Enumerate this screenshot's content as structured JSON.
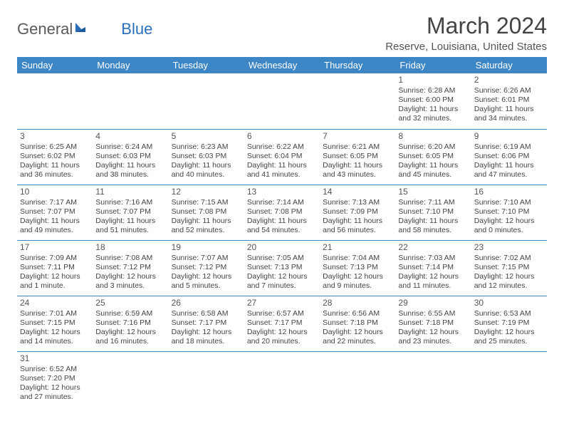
{
  "brand": {
    "part1": "General",
    "part2": "Blue"
  },
  "title": "March 2024",
  "location": "Reserve, Louisiana, United States",
  "colors": {
    "header_bg": "#3d86c6",
    "header_fg": "#ffffff",
    "border": "#3d86c6",
    "text": "#444444",
    "brand_gray": "#5a5a5a",
    "brand_blue": "#2a6db8"
  },
  "weekdays": [
    "Sunday",
    "Monday",
    "Tuesday",
    "Wednesday",
    "Thursday",
    "Friday",
    "Saturday"
  ],
  "weeks": [
    [
      null,
      null,
      null,
      null,
      null,
      {
        "n": "1",
        "sr": "6:28 AM",
        "ss": "6:00 PM",
        "dl": "11 hours and 32 minutes."
      },
      {
        "n": "2",
        "sr": "6:26 AM",
        "ss": "6:01 PM",
        "dl": "11 hours and 34 minutes."
      }
    ],
    [
      {
        "n": "3",
        "sr": "6:25 AM",
        "ss": "6:02 PM",
        "dl": "11 hours and 36 minutes."
      },
      {
        "n": "4",
        "sr": "6:24 AM",
        "ss": "6:03 PM",
        "dl": "11 hours and 38 minutes."
      },
      {
        "n": "5",
        "sr": "6:23 AM",
        "ss": "6:03 PM",
        "dl": "11 hours and 40 minutes."
      },
      {
        "n": "6",
        "sr": "6:22 AM",
        "ss": "6:04 PM",
        "dl": "11 hours and 41 minutes."
      },
      {
        "n": "7",
        "sr": "6:21 AM",
        "ss": "6:05 PM",
        "dl": "11 hours and 43 minutes."
      },
      {
        "n": "8",
        "sr": "6:20 AM",
        "ss": "6:05 PM",
        "dl": "11 hours and 45 minutes."
      },
      {
        "n": "9",
        "sr": "6:19 AM",
        "ss": "6:06 PM",
        "dl": "11 hours and 47 minutes."
      }
    ],
    [
      {
        "n": "10",
        "sr": "7:17 AM",
        "ss": "7:07 PM",
        "dl": "11 hours and 49 minutes."
      },
      {
        "n": "11",
        "sr": "7:16 AM",
        "ss": "7:07 PM",
        "dl": "11 hours and 51 minutes."
      },
      {
        "n": "12",
        "sr": "7:15 AM",
        "ss": "7:08 PM",
        "dl": "11 hours and 52 minutes."
      },
      {
        "n": "13",
        "sr": "7:14 AM",
        "ss": "7:08 PM",
        "dl": "11 hours and 54 minutes."
      },
      {
        "n": "14",
        "sr": "7:13 AM",
        "ss": "7:09 PM",
        "dl": "11 hours and 56 minutes."
      },
      {
        "n": "15",
        "sr": "7:11 AM",
        "ss": "7:10 PM",
        "dl": "11 hours and 58 minutes."
      },
      {
        "n": "16",
        "sr": "7:10 AM",
        "ss": "7:10 PM",
        "dl": "12 hours and 0 minutes."
      }
    ],
    [
      {
        "n": "17",
        "sr": "7:09 AM",
        "ss": "7:11 PM",
        "dl": "12 hours and 1 minute."
      },
      {
        "n": "18",
        "sr": "7:08 AM",
        "ss": "7:12 PM",
        "dl": "12 hours and 3 minutes."
      },
      {
        "n": "19",
        "sr": "7:07 AM",
        "ss": "7:12 PM",
        "dl": "12 hours and 5 minutes."
      },
      {
        "n": "20",
        "sr": "7:05 AM",
        "ss": "7:13 PM",
        "dl": "12 hours and 7 minutes."
      },
      {
        "n": "21",
        "sr": "7:04 AM",
        "ss": "7:13 PM",
        "dl": "12 hours and 9 minutes."
      },
      {
        "n": "22",
        "sr": "7:03 AM",
        "ss": "7:14 PM",
        "dl": "12 hours and 11 minutes."
      },
      {
        "n": "23",
        "sr": "7:02 AM",
        "ss": "7:15 PM",
        "dl": "12 hours and 12 minutes."
      }
    ],
    [
      {
        "n": "24",
        "sr": "7:01 AM",
        "ss": "7:15 PM",
        "dl": "12 hours and 14 minutes."
      },
      {
        "n": "25",
        "sr": "6:59 AM",
        "ss": "7:16 PM",
        "dl": "12 hours and 16 minutes."
      },
      {
        "n": "26",
        "sr": "6:58 AM",
        "ss": "7:17 PM",
        "dl": "12 hours and 18 minutes."
      },
      {
        "n": "27",
        "sr": "6:57 AM",
        "ss": "7:17 PM",
        "dl": "12 hours and 20 minutes."
      },
      {
        "n": "28",
        "sr": "6:56 AM",
        "ss": "7:18 PM",
        "dl": "12 hours and 22 minutes."
      },
      {
        "n": "29",
        "sr": "6:55 AM",
        "ss": "7:18 PM",
        "dl": "12 hours and 23 minutes."
      },
      {
        "n": "30",
        "sr": "6:53 AM",
        "ss": "7:19 PM",
        "dl": "12 hours and 25 minutes."
      }
    ],
    [
      {
        "n": "31",
        "sr": "6:52 AM",
        "ss": "7:20 PM",
        "dl": "12 hours and 27 minutes."
      },
      null,
      null,
      null,
      null,
      null,
      null
    ]
  ],
  "labels": {
    "sunrise": "Sunrise:",
    "sunset": "Sunset:",
    "daylight": "Daylight:"
  }
}
